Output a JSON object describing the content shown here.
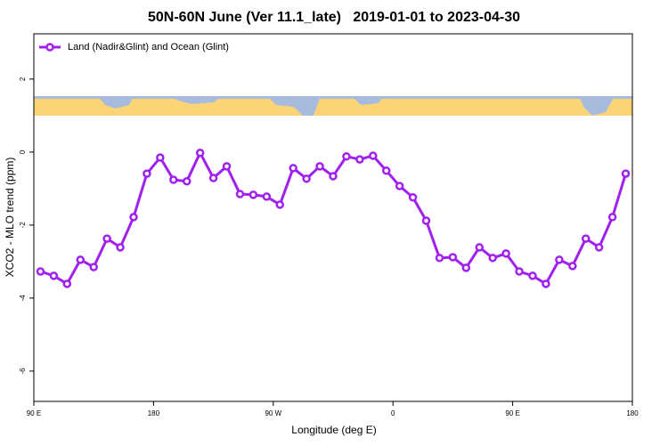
{
  "chart_data": {
    "type": "line",
    "title": "50N-60N June (Ver 11.1_late)   2019-01-01 to 2023-04-30",
    "x_label": "Longitude (deg E)",
    "y_label": "XCO2 - MLO trend (ppm)",
    "x": [
      95,
      105,
      115,
      125,
      135,
      145,
      155,
      165,
      175,
      185,
      195,
      205,
      215,
      225,
      235,
      245,
      255,
      265,
      275,
      285,
      295,
      305,
      315,
      325,
      335,
      345,
      355,
      365,
      375,
      385,
      395,
      405,
      415,
      425,
      435,
      445,
      455,
      465,
      475,
      485,
      495,
      505,
      515,
      525,
      535
    ],
    "series": [
      {
        "name": "Land (Nadir&Glint) and Ocean (Glint)",
        "color": "#a020f0",
        "values": [
          -3.27,
          -3.39,
          -3.61,
          -2.95,
          -3.15,
          -2.37,
          -2.61,
          -1.78,
          -0.59,
          -0.15,
          -0.76,
          -0.8,
          -0.02,
          -0.71,
          -0.39,
          -1.15,
          -1.17,
          -1.22,
          -1.44,
          -0.44,
          -0.73,
          -0.39,
          -0.66,
          -0.12,
          -0.2,
          -0.1,
          -0.51,
          -0.93,
          -1.24,
          -1.88,
          -2.9,
          -2.88,
          -3.17,
          -2.61,
          -2.9,
          -2.78,
          -3.27,
          -3.39,
          -3.61,
          -2.95,
          -3.12,
          -2.37,
          -2.61,
          -1.78,
          -0.59
        ]
      }
    ],
    "xlim": [
      90,
      540
    ],
    "xticks": [
      {
        "value": 90,
        "label": "90 E"
      },
      {
        "value": 180,
        "label": "180"
      },
      {
        "value": 270,
        "label": "90 W"
      },
      {
        "value": 360,
        "label": "0"
      },
      {
        "value": 450,
        "label": "90 E"
      },
      {
        "value": 540,
        "label": "180"
      }
    ],
    "ylim": [
      -6.83,
      3.24
    ],
    "yticks": [
      -6,
      -4,
      -2,
      0,
      2
    ],
    "legend": "top-left"
  }
}
